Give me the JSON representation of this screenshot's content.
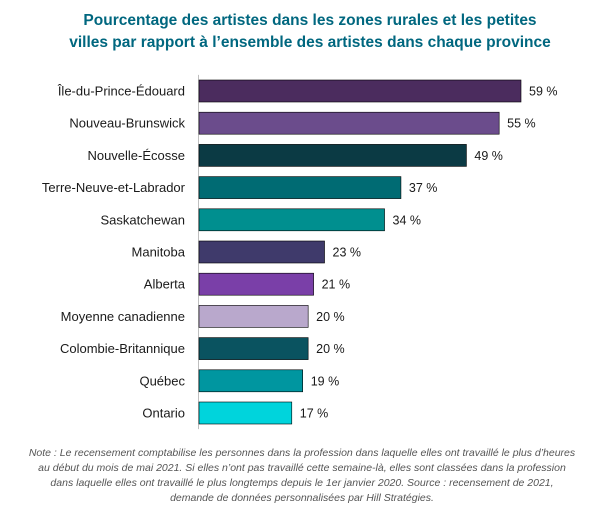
{
  "chart_data": {
    "type": "bar",
    "orientation": "horizontal",
    "title": "Pourcentage des artistes dans les zones rurales et les petites villes par rapport à l’ensemble des artistes dans chaque province",
    "title_lines": [
      "Pourcentage des artistes dans les zones rurales et les petites",
      "villes par rapport à l’ensemble des artistes dans chaque province"
    ],
    "xlabel": "",
    "ylabel": "",
    "xlim": [
      0,
      60
    ],
    "grid": false,
    "legend": "none",
    "value_suffix": " %",
    "categories": [
      "Île-du-Prince-Édouard",
      "Nouveau-Brunswick",
      "Nouvelle-Écosse",
      "Terre-Neuve-et-Labrador",
      "Saskatchewan",
      "Manitoba",
      "Alberta",
      "Moyenne canadienne",
      "Colombie-Britannique",
      "Québec",
      "Ontario"
    ],
    "values": [
      59,
      55,
      49,
      37,
      34,
      23,
      21,
      20,
      20,
      19,
      17
    ],
    "data_labels": [
      "59 %",
      "55 %",
      "49 %",
      "37 %",
      "34 %",
      "23 %",
      "21 %",
      "20 %",
      "20 %",
      "19 %",
      "17 %"
    ],
    "colors": [
      "#4b2c5e",
      "#6b4c8c",
      "#0b3a44",
      "#006b73",
      "#008f8f",
      "#3f3a6b",
      "#7a3fa8",
      "#b9a8cc",
      "#0a5360",
      "#0096a0",
      "#00d4dc"
    ]
  },
  "note": "Note : Le recensement comptabilise les personnes dans la profession dans laquelle elles ont travaillé le plus d’heures au début du mois de mai 2021.  Si elles n’ont pas travaillé cette semaine-là, elles sont classées dans la profession dans laquelle elles ont travaillé le plus longtemps depuis le 1er janvier 2020.  Source : recensement de 2021,  demande de données personnalisées par Hill Stratégies."
}
